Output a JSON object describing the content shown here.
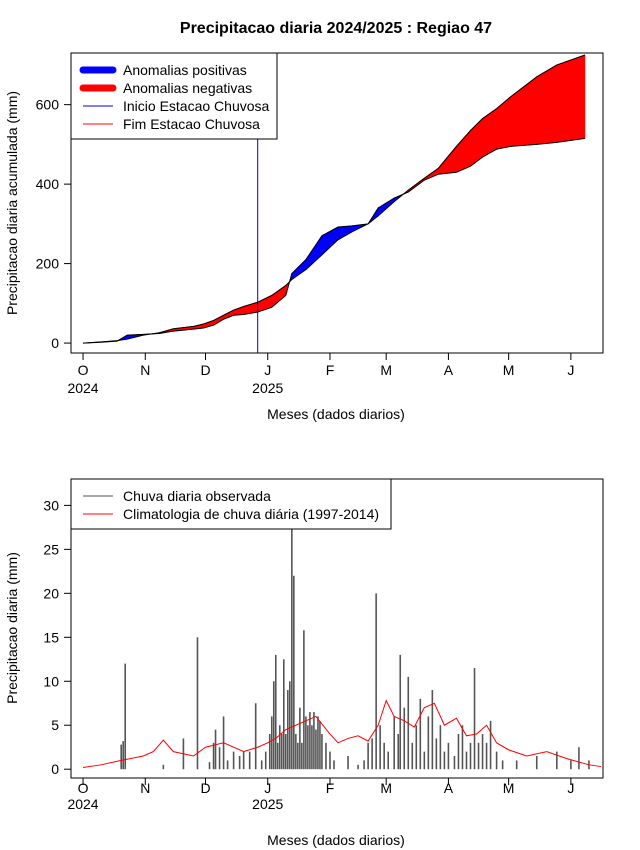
{
  "chart_data": [
    {
      "type": "area",
      "title": "Precipitacao diaria 2024/2025 : Regiao 47",
      "xlabel": "Meses (dados diarios)",
      "ylabel": "Precipitacao diaria acumulada (mm)",
      "x_unit": "date",
      "ylim": [
        -25,
        730
      ],
      "yticks": [
        0,
        200,
        400,
        600
      ],
      "month_ticks": [
        {
          "date": "2024-10-01",
          "label": "O",
          "year": "2024"
        },
        {
          "date": "2024-11-01",
          "label": "N",
          "year": ""
        },
        {
          "date": "2024-12-01",
          "label": "D",
          "year": ""
        },
        {
          "date": "2025-01-01",
          "label": "J",
          "year": "2025"
        },
        {
          "date": "2025-02-01",
          "label": "F",
          "year": ""
        },
        {
          "date": "2025-03-01",
          "label": "M",
          "year": ""
        },
        {
          "date": "2025-04-01",
          "label": "A",
          "year": ""
        },
        {
          "date": "2025-05-01",
          "label": "M",
          "year": ""
        },
        {
          "date": "2025-06-01",
          "label": "J",
          "year": ""
        }
      ],
      "colors": {
        "positive": "#0000ff",
        "negative": "#ff0000",
        "onset": "#0000cd",
        "end": "#ff0000"
      },
      "legend_position": "top-left",
      "legend": [
        {
          "label": "Anomalias positivas",
          "color": "#0000ff",
          "style": "thick"
        },
        {
          "label": "Anomalias negativas",
          "color": "#ff0000",
          "style": "thick"
        },
        {
          "label": "Inicio Estacao Chuvosa",
          "color": "#0000cd",
          "style": "thin"
        },
        {
          "label": "Fim Estacao Chuvosa",
          "color": "#ff0000",
          "style": "thin"
        }
      ],
      "onset_date": "2024-12-27",
      "series": [
        {
          "name": "observed_cumulative",
          "points": [
            [
              "2024-10-01",
              0
            ],
            [
              "2024-10-10",
              2
            ],
            [
              "2024-10-18",
              5
            ],
            [
              "2024-10-23",
              20
            ],
            [
              "2024-10-31",
              22
            ],
            [
              "2024-11-08",
              24
            ],
            [
              "2024-11-15",
              30
            ],
            [
              "2024-11-25",
              35
            ],
            [
              "2024-11-30",
              38
            ],
            [
              "2024-12-05",
              45
            ],
            [
              "2024-12-10",
              60
            ],
            [
              "2024-12-15",
              70
            ],
            [
              "2024-12-20",
              72
            ],
            [
              "2024-12-27",
              78
            ],
            [
              "2025-01-03",
              90
            ],
            [
              "2025-01-10",
              120
            ],
            [
              "2025-01-13",
              175
            ],
            [
              "2025-01-20",
              210
            ],
            [
              "2025-01-28",
              270
            ],
            [
              "2025-02-05",
              292
            ],
            [
              "2025-02-12",
              295
            ],
            [
              "2025-02-20",
              300
            ],
            [
              "2025-02-25",
              340
            ],
            [
              "2025-03-05",
              365
            ],
            [
              "2025-03-12",
              380
            ],
            [
              "2025-03-20",
              410
            ],
            [
              "2025-03-27",
              425
            ],
            [
              "2025-04-05",
              430
            ],
            [
              "2025-04-12",
              445
            ],
            [
              "2025-04-18",
              468
            ],
            [
              "2025-04-25",
              488
            ],
            [
              "2025-05-02",
              495
            ],
            [
              "2025-05-15",
              500
            ],
            [
              "2025-05-25",
              505
            ],
            [
              "2025-06-08",
              515
            ]
          ]
        },
        {
          "name": "climatology_cumulative",
          "points": [
            [
              "2024-10-01",
              0
            ],
            [
              "2024-10-10",
              3
            ],
            [
              "2024-10-18",
              6
            ],
            [
              "2024-10-23",
              10
            ],
            [
              "2024-10-31",
              20
            ],
            [
              "2024-11-08",
              26
            ],
            [
              "2024-11-15",
              36
            ],
            [
              "2024-11-25",
              42
            ],
            [
              "2024-11-30",
              48
            ],
            [
              "2024-12-05",
              57
            ],
            [
              "2024-12-10",
              70
            ],
            [
              "2024-12-15",
              83
            ],
            [
              "2024-12-20",
              92
            ],
            [
              "2024-12-27",
              103
            ],
            [
              "2025-01-03",
              120
            ],
            [
              "2025-01-10",
              145
            ],
            [
              "2025-01-13",
              160
            ],
            [
              "2025-01-20",
              185
            ],
            [
              "2025-01-28",
              222
            ],
            [
              "2025-02-05",
              260
            ],
            [
              "2025-02-12",
              280
            ],
            [
              "2025-02-20",
              300
            ],
            [
              "2025-02-25",
              320
            ],
            [
              "2025-03-05",
              356
            ],
            [
              "2025-03-12",
              385
            ],
            [
              "2025-03-20",
              415
            ],
            [
              "2025-03-27",
              440
            ],
            [
              "2025-04-05",
              495
            ],
            [
              "2025-04-12",
              535
            ],
            [
              "2025-04-18",
              565
            ],
            [
              "2025-04-25",
              590
            ],
            [
              "2025-05-02",
              620
            ],
            [
              "2025-05-15",
              670
            ],
            [
              "2025-05-25",
              700
            ],
            [
              "2025-06-08",
              725
            ]
          ]
        }
      ]
    },
    {
      "type": "bar",
      "xlabel": "Meses (dados diarios)",
      "ylabel": "Precipitacao diaria (mm)",
      "x_unit": "date",
      "ylim": [
        -1,
        33
      ],
      "yticks": [
        0,
        5,
        10,
        15,
        20,
        25,
        30
      ],
      "month_ticks": [
        {
          "date": "2024-10-01",
          "label": "O",
          "year": "2024"
        },
        {
          "date": "2024-11-01",
          "label": "N",
          "year": ""
        },
        {
          "date": "2024-12-01",
          "label": "D",
          "year": ""
        },
        {
          "date": "2025-01-01",
          "label": "J",
          "year": "2025"
        },
        {
          "date": "2025-02-01",
          "label": "F",
          "year": ""
        },
        {
          "date": "2025-03-01",
          "label": "M",
          "year": ""
        },
        {
          "date": "2025-04-01",
          "label": "A",
          "year": ""
        },
        {
          "date": "2025-05-01",
          "label": "M",
          "year": ""
        },
        {
          "date": "2025-06-01",
          "label": "J",
          "year": ""
        }
      ],
      "legend_position": "top-left",
      "legend": [
        {
          "label": "Chuva diaria observada",
          "color": "#555555"
        },
        {
          "label": "Climatologia de chuva diária (1997-2014)",
          "color": "#ff0000"
        }
      ],
      "series": [
        {
          "name": "Chuva diaria observada",
          "color": "#555555",
          "points": [
            [
              "2024-10-20",
              2.8
            ],
            [
              "2024-10-21",
              3.2
            ],
            [
              "2024-10-22",
              12
            ],
            [
              "2024-11-10",
              0.5
            ],
            [
              "2024-11-20",
              3.5
            ],
            [
              "2024-11-27",
              15
            ],
            [
              "2024-12-03",
              0.8
            ],
            [
              "2024-12-05",
              3
            ],
            [
              "2024-12-06",
              4.5
            ],
            [
              "2024-12-08",
              2.5
            ],
            [
              "2024-12-10",
              6
            ],
            [
              "2024-12-12",
              1
            ],
            [
              "2024-12-15",
              2
            ],
            [
              "2024-12-18",
              1.5
            ],
            [
              "2024-12-20",
              2
            ],
            [
              "2024-12-23",
              2
            ],
            [
              "2024-12-26",
              7.5
            ],
            [
              "2024-12-29",
              1
            ],
            [
              "2024-12-31",
              2
            ],
            [
              "2025-01-02",
              4
            ],
            [
              "2025-01-03",
              6
            ],
            [
              "2025-01-04",
              10
            ],
            [
              "2025-01-05",
              13
            ],
            [
              "2025-01-06",
              3
            ],
            [
              "2025-01-07",
              5
            ],
            [
              "2025-01-08",
              4
            ],
            [
              "2025-01-09",
              12.5
            ],
            [
              "2025-01-10",
              4
            ],
            [
              "2025-01-11",
              9
            ],
            [
              "2025-01-12",
              10
            ],
            [
              "2025-01-13",
              28
            ],
            [
              "2025-01-14",
              22
            ],
            [
              "2025-01-15",
              4
            ],
            [
              "2025-01-16",
              3
            ],
            [
              "2025-01-17",
              7
            ],
            [
              "2025-01-18",
              3
            ],
            [
              "2025-01-19",
              15.8
            ],
            [
              "2025-01-20",
              6
            ],
            [
              "2025-01-21",
              5
            ],
            [
              "2025-01-22",
              6.5
            ],
            [
              "2025-01-23",
              5
            ],
            [
              "2025-01-24",
              6.5
            ],
            [
              "2025-01-25",
              4.5
            ],
            [
              "2025-01-26",
              6
            ],
            [
              "2025-01-27",
              5.5
            ],
            [
              "2025-01-28",
              4
            ],
            [
              "2025-01-30",
              3
            ],
            [
              "2025-02-01",
              2
            ],
            [
              "2025-02-03",
              1
            ],
            [
              "2025-02-10",
              1.5
            ],
            [
              "2025-02-15",
              0.5
            ],
            [
              "2025-02-18",
              1
            ],
            [
              "2025-02-20",
              3
            ],
            [
              "2025-02-22",
              3.5
            ],
            [
              "2025-02-24",
              20
            ],
            [
              "2025-02-26",
              5
            ],
            [
              "2025-02-28",
              3
            ],
            [
              "2025-03-02",
              2
            ],
            [
              "2025-03-05",
              6
            ],
            [
              "2025-03-07",
              4
            ],
            [
              "2025-03-08",
              13
            ],
            [
              "2025-03-10",
              7
            ],
            [
              "2025-03-12",
              10.5
            ],
            [
              "2025-03-14",
              3
            ],
            [
              "2025-03-16",
              5
            ],
            [
              "2025-03-18",
              8
            ],
            [
              "2025-03-20",
              2
            ],
            [
              "2025-03-22",
              6
            ],
            [
              "2025-03-24",
              9
            ],
            [
              "2025-03-26",
              3.5
            ],
            [
              "2025-03-28",
              5
            ],
            [
              "2025-03-30",
              2
            ],
            [
              "2025-04-01",
              3
            ],
            [
              "2025-04-04",
              1.5
            ],
            [
              "2025-04-06",
              4
            ],
            [
              "2025-04-08",
              5
            ],
            [
              "2025-04-10",
              2
            ],
            [
              "2025-04-12",
              3
            ],
            [
              "2025-04-14",
              11.5
            ],
            [
              "2025-04-16",
              3
            ],
            [
              "2025-04-18",
              4
            ],
            [
              "2025-04-20",
              3
            ],
            [
              "2025-04-22",
              5.5
            ],
            [
              "2025-04-25",
              2
            ],
            [
              "2025-04-28",
              1
            ],
            [
              "2025-05-05",
              1
            ],
            [
              "2025-05-15",
              1.5
            ],
            [
              "2025-05-25",
              2
            ],
            [
              "2025-06-01",
              1
            ],
            [
              "2025-06-05",
              2.5
            ],
            [
              "2025-06-10",
              1
            ]
          ]
        },
        {
          "name": "Climatologia de chuva diária (1997-2014)",
          "color": "#ff0000",
          "points": [
            [
              "2024-10-01",
              0.2
            ],
            [
              "2024-10-10",
              0.5
            ],
            [
              "2024-10-20",
              1
            ],
            [
              "2024-10-31",
              1.5
            ],
            [
              "2024-11-05",
              2
            ],
            [
              "2024-11-10",
              3.3
            ],
            [
              "2024-11-15",
              2
            ],
            [
              "2024-11-25",
              1.5
            ],
            [
              "2024-12-01",
              2.5
            ],
            [
              "2024-12-10",
              3
            ],
            [
              "2024-12-20",
              2
            ],
            [
              "2024-12-27",
              2.5
            ],
            [
              "2025-01-01",
              3
            ],
            [
              "2025-01-05",
              3.5
            ],
            [
              "2025-01-10",
              4.5
            ],
            [
              "2025-01-15",
              5
            ],
            [
              "2025-01-20",
              5.5
            ],
            [
              "2025-01-25",
              6
            ],
            [
              "2025-02-01",
              4
            ],
            [
              "2025-02-05",
              3
            ],
            [
              "2025-02-10",
              3.5
            ],
            [
              "2025-02-15",
              3.8
            ],
            [
              "2025-02-20",
              3.2
            ],
            [
              "2025-02-25",
              5
            ],
            [
              "2025-03-01",
              7.8
            ],
            [
              "2025-03-05",
              6
            ],
            [
              "2025-03-10",
              5.5
            ],
            [
              "2025-03-15",
              4.8
            ],
            [
              "2025-03-20",
              7
            ],
            [
              "2025-03-25",
              7.5
            ],
            [
              "2025-03-30",
              5
            ],
            [
              "2025-04-05",
              5.8
            ],
            [
              "2025-04-10",
              3.8
            ],
            [
              "2025-04-15",
              4
            ],
            [
              "2025-04-20",
              5
            ],
            [
              "2025-04-25",
              3
            ],
            [
              "2025-05-01",
              2.2
            ],
            [
              "2025-05-10",
              1.5
            ],
            [
              "2025-05-20",
              2
            ],
            [
              "2025-05-30",
              1.2
            ],
            [
              "2025-06-10",
              0.5
            ],
            [
              "2025-06-16",
              0.3
            ]
          ]
        }
      ]
    }
  ]
}
